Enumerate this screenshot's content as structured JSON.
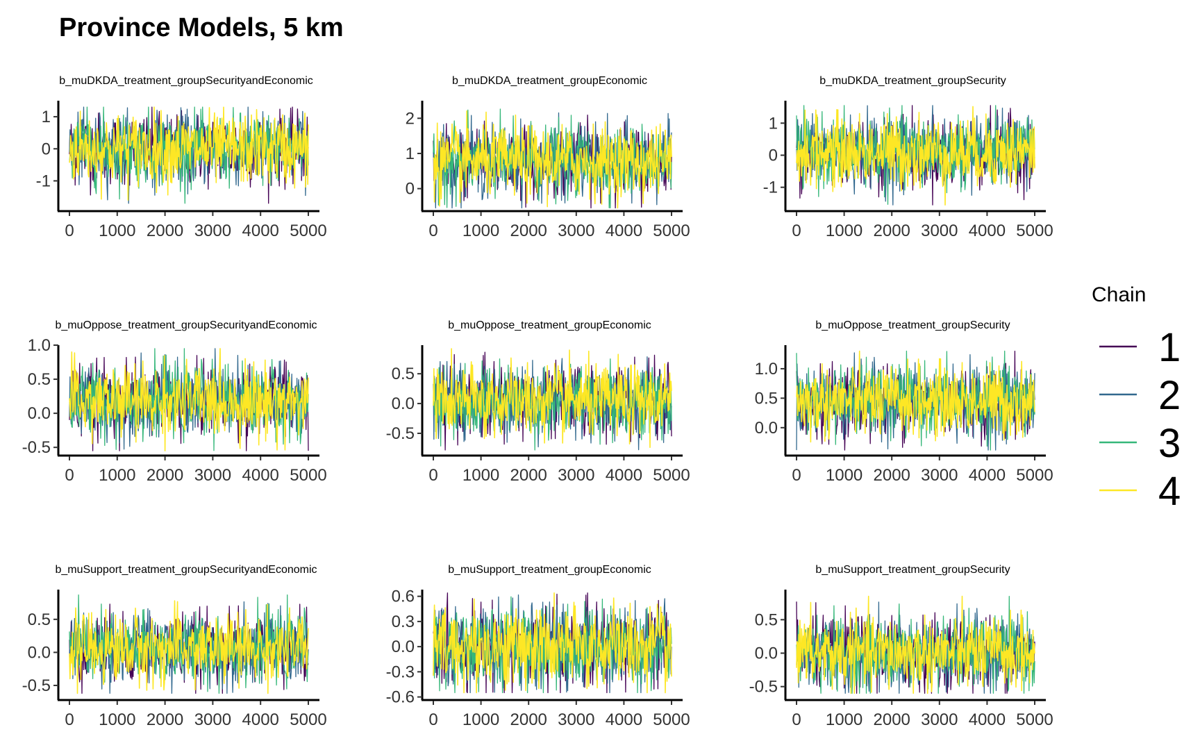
{
  "title": "Province Models, 5 km",
  "legend": {
    "title": "Chain",
    "items": [
      {
        "label": "1",
        "color": "#440154"
      },
      {
        "label": "2",
        "color": "#31688E"
      },
      {
        "label": "3",
        "color": "#35B779"
      },
      {
        "label": "4",
        "color": "#FDE725"
      }
    ],
    "placement": "right"
  },
  "chart_data": [
    {
      "type": "line",
      "title": "b_muDKDA_treatment_groupSecurityandEconomic",
      "xlim": [
        0,
        5000
      ],
      "ylim": [
        -1.9,
        1.5
      ],
      "xticks": [
        0,
        1000,
        2000,
        3000,
        4000,
        5000
      ],
      "yticks": [
        -1,
        0,
        1
      ],
      "ytick_labels": [
        "-1",
        "0",
        "1"
      ],
      "center": 0.0,
      "spread": 0.55,
      "min": -1.7,
      "max": 1.3,
      "series": [
        "1",
        "2",
        "3",
        "4"
      ]
    },
    {
      "type": "line",
      "title": "b_muDKDA_treatment_groupEconomic",
      "xlim": [
        0,
        5000
      ],
      "ylim": [
        -0.6,
        2.5
      ],
      "xticks": [
        0,
        1000,
        2000,
        3000,
        4000,
        5000
      ],
      "yticks": [
        0,
        1,
        2
      ],
      "ytick_labels": [
        "0",
        "1",
        "2"
      ],
      "center": 0.78,
      "spread": 0.5,
      "min": -0.55,
      "max": 2.3,
      "series": [
        "1",
        "2",
        "3",
        "4"
      ]
    },
    {
      "type": "line",
      "title": "b_muDKDA_treatment_groupSecurity",
      "xlim": [
        0,
        5000
      ],
      "ylim": [
        -1.7,
        1.7
      ],
      "xticks": [
        0,
        1000,
        2000,
        3000,
        4000,
        5000
      ],
      "yticks": [
        -1,
        0,
        1
      ],
      "ytick_labels": [
        "-1",
        "0",
        "1"
      ],
      "center": 0.1,
      "spread": 0.55,
      "min": -1.55,
      "max": 1.55,
      "series": [
        "1",
        "2",
        "3",
        "4"
      ]
    },
    {
      "type": "line",
      "title": "b_muOppose_treatment_groupSecurityandEconomic",
      "xlim": [
        0,
        5000
      ],
      "ylim": [
        -0.6,
        1.0
      ],
      "xticks": [
        0,
        1000,
        2000,
        3000,
        4000,
        5000
      ],
      "yticks": [
        -0.5,
        0.0,
        0.5,
        1.0
      ],
      "ytick_labels": [
        "-0.5",
        "0.0",
        "0.5",
        "1.0"
      ],
      "center": 0.18,
      "spread": 0.26,
      "min": -0.55,
      "max": 0.95,
      "series": [
        "1",
        "2",
        "3",
        "4"
      ]
    },
    {
      "type": "line",
      "title": "b_muOppose_treatment_groupEconomic",
      "xlim": [
        0,
        5000
      ],
      "ylim": [
        -0.85,
        0.98
      ],
      "xticks": [
        0,
        1000,
        2000,
        3000,
        4000,
        5000
      ],
      "yticks": [
        -0.5,
        0.0,
        0.5
      ],
      "ytick_labels": [
        "-0.5",
        "0.0",
        "0.5"
      ],
      "center": 0.04,
      "spread": 0.3,
      "min": -0.78,
      "max": 0.92,
      "series": [
        "1",
        "2",
        "3",
        "4"
      ]
    },
    {
      "type": "line",
      "title": "b_muOppose_treatment_groupSecurity",
      "xlim": [
        0,
        5000
      ],
      "ylim": [
        -0.45,
        1.4
      ],
      "xticks": [
        0,
        1000,
        2000,
        3000,
        4000,
        5000
      ],
      "yticks": [
        0.0,
        0.5,
        1.0
      ],
      "ytick_labels": [
        "0.0",
        "0.5",
        "1.0"
      ],
      "center": 0.45,
      "spread": 0.3,
      "min": -0.38,
      "max": 1.3,
      "series": [
        "1",
        "2",
        "3",
        "4"
      ]
    },
    {
      "type": "line",
      "title": "b_muSupport_treatment_groupSecurityandEconomic",
      "xlim": [
        0,
        5000
      ],
      "ylim": [
        -0.7,
        0.95
      ],
      "xticks": [
        0,
        1000,
        2000,
        3000,
        4000,
        5000
      ],
      "yticks": [
        -0.5,
        0.0,
        0.5
      ],
      "ytick_labels": [
        "-0.5",
        "0.0",
        "0.5"
      ],
      "center": 0.06,
      "spread": 0.26,
      "min": -0.62,
      "max": 0.87,
      "series": [
        "1",
        "2",
        "3",
        "4"
      ]
    },
    {
      "type": "line",
      "title": "b_muSupport_treatment_groupEconomic",
      "xlim": [
        0,
        5000
      ],
      "ylim": [
        -0.62,
        0.68
      ],
      "xticks": [
        0,
        1000,
        2000,
        3000,
        4000,
        5000
      ],
      "yticks": [
        -0.6,
        -0.3,
        0.0,
        0.3,
        0.6
      ],
      "ytick_labels": [
        "-0.6",
        "-0.3",
        "0.0",
        "0.3",
        "0.6"
      ],
      "center": 0.0,
      "spread": 0.24,
      "min": -0.55,
      "max": 0.64,
      "series": [
        "1",
        "2",
        "3",
        "4"
      ]
    },
    {
      "type": "line",
      "title": "b_muSupport_treatment_groupSecurity",
      "xlim": [
        0,
        5000
      ],
      "ylim": [
        -0.68,
        0.95
      ],
      "xticks": [
        0,
        1000,
        2000,
        3000,
        4000,
        5000
      ],
      "yticks": [
        -0.5,
        0.0,
        0.5
      ],
      "ytick_labels": [
        "-0.5",
        "0.0",
        "0.5"
      ],
      "center": 0.0,
      "spread": 0.27,
      "min": -0.6,
      "max": 0.85,
      "series": [
        "1",
        "2",
        "3",
        "4"
      ]
    }
  ]
}
